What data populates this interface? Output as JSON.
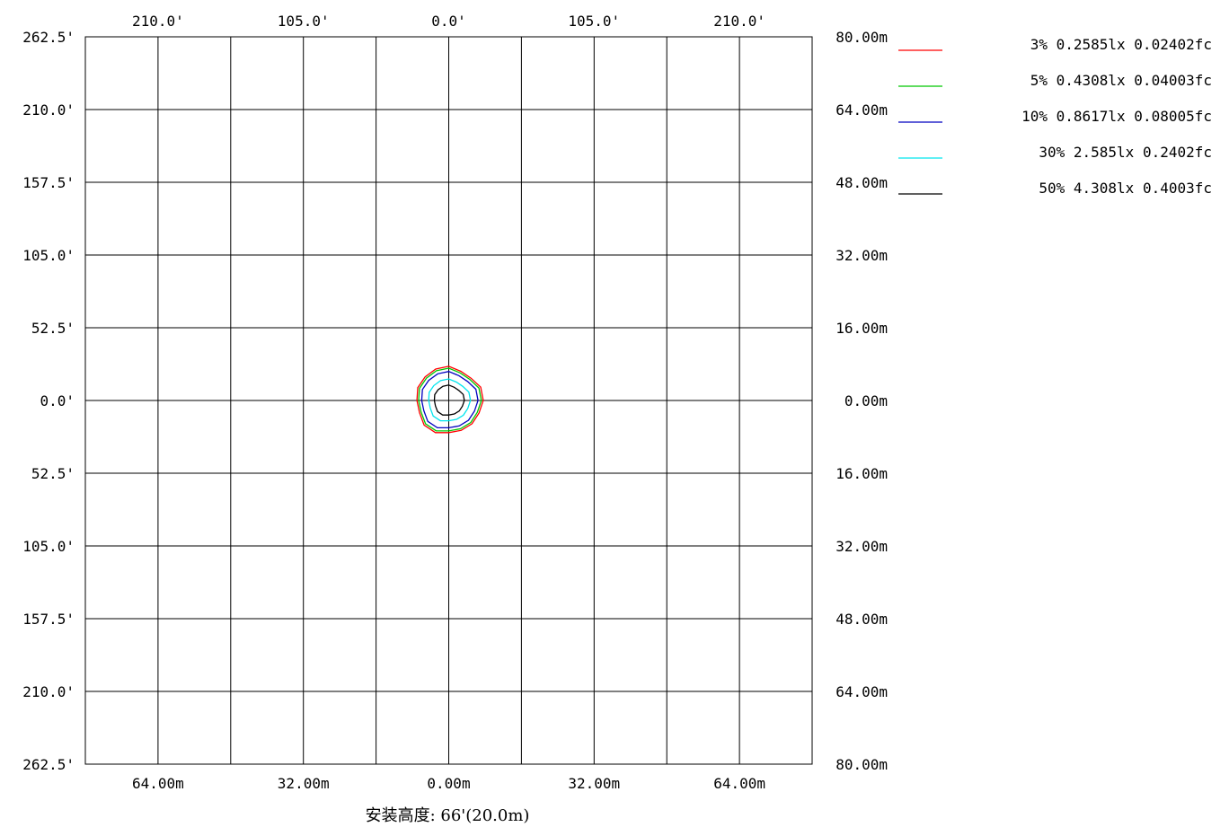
{
  "chart_data": {
    "type": "contour",
    "caption": "安装高度: 66'(20.0m)",
    "grid": true,
    "legend_position": "top-right",
    "x_range_m": [
      -80,
      80
    ],
    "y_range_m": [
      -80,
      80
    ],
    "top_tick_labels": [
      "210.0'",
      "105.0'",
      "0.0'",
      "105.0'",
      "210.0'"
    ],
    "top_tick_values_m": [
      -64,
      -32,
      0,
      32,
      64
    ],
    "bottom_tick_labels": [
      "64.00m",
      "32.00m",
      "0.00m",
      "32.00m",
      "64.00m"
    ],
    "bottom_tick_values_m": [
      -64,
      -32,
      0,
      32,
      64
    ],
    "left_tick_labels": [
      "262.5'",
      "210.0'",
      "157.5'",
      "105.0'",
      "52.5'",
      "0.0'",
      "52.5'",
      "105.0'",
      "157.5'",
      "210.0'",
      "262.5'"
    ],
    "left_tick_values_m": [
      80,
      64,
      48,
      32,
      16,
      0,
      -16,
      -32,
      -48,
      -64,
      -80
    ],
    "right_tick_labels": [
      "80.00m",
      "64.00m",
      "48.00m",
      "32.00m",
      "16.00m",
      "0.00m",
      "16.00m",
      "32.00m",
      "48.00m",
      "64.00m",
      "80.00m"
    ],
    "right_tick_values_m": [
      80,
      64,
      48,
      32,
      16,
      0,
      -16,
      -32,
      -48,
      -64,
      -80
    ],
    "series": [
      {
        "name": "3% 0.2585lx 0.02402fc",
        "color": "#ff0000",
        "radius_m": 7.3
      },
      {
        "name": "5% 0.4308lx 0.04003fc",
        "color": "#00c800",
        "radius_m": 6.9
      },
      {
        "name": "10% 0.8617lx 0.08005fc",
        "color": "#0000c0",
        "radius_m": 6.2
      },
      {
        "name": "30% 2.585lx 0.2402fc",
        "color": "#00e5ee",
        "radius_m": 4.6
      },
      {
        "name": "50% 4.308lx 0.4003fc",
        "color": "#000000",
        "radius_m": 3.3
      }
    ]
  }
}
